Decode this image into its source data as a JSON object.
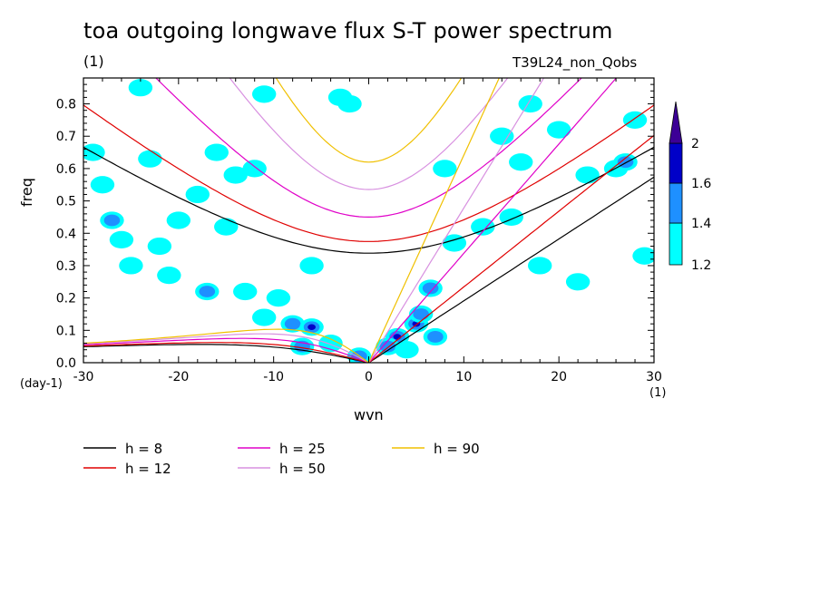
{
  "chart_data": {
    "type": "heatmap",
    "title": "toa outgoing longwave flux S-T power spectrum",
    "subtitle_left": "(1)",
    "subtitle_right": "T39L24_non_Qobs",
    "xlabel": "wvn",
    "ylabel": "freq",
    "x_unit": "(1)",
    "y_unit": "(day-1)",
    "xlim": [
      -30,
      30
    ],
    "ylim": [
      0,
      0.88
    ],
    "x_ticks": [
      -30,
      -20,
      -10,
      0,
      10,
      20,
      30
    ],
    "y_ticks": [
      0.0,
      0.1,
      0.2,
      0.3,
      0.4,
      0.5,
      0.6,
      0.7,
      0.8
    ],
    "x_tick_labels": [
      "-30",
      "-20",
      "-10",
      "0",
      "10",
      "20",
      "30"
    ],
    "y_tick_labels": [
      "0.0",
      "0.1",
      "0.2",
      "0.3",
      "0.4",
      "0.5",
      "0.6",
      "0.7",
      "0.8"
    ],
    "colorbar": {
      "levels": [
        1.2,
        1.4,
        1.6,
        2
      ],
      "labels": [
        "1.2",
        "1.4",
        "1.6",
        "2"
      ],
      "colors": [
        "#00ffff",
        "#1e90ff",
        "#0000c8",
        "#3c0096"
      ]
    },
    "series": [
      {
        "name": "h =  8",
        "h": 8,
        "color": "#000000"
      },
      {
        "name": "h = 12",
        "h": 12,
        "color": "#e00000"
      },
      {
        "name": "h = 25",
        "h": 25,
        "color": "#e000c8"
      },
      {
        "name": "h = 50",
        "h": 50,
        "color": "#d890e0"
      },
      {
        "name": "h = 90",
        "h": 90,
        "color": "#f0c000"
      }
    ],
    "contour_blobs": [
      {
        "x": 3,
        "y": 0.08,
        "level": 3
      },
      {
        "x": 5,
        "y": 0.12,
        "level": 3
      },
      {
        "x": 6.5,
        "y": 0.23,
        "level": 2
      },
      {
        "x": 5.5,
        "y": 0.15,
        "level": 2
      },
      {
        "x": 2,
        "y": 0.05,
        "level": 2
      },
      {
        "x": 7,
        "y": 0.08,
        "level": 2
      },
      {
        "x": 4,
        "y": 0.04,
        "level": 1
      },
      {
        "x": -8,
        "y": 0.12,
        "level": 2
      },
      {
        "x": -6,
        "y": 0.11,
        "level": 3
      },
      {
        "x": -9.5,
        "y": 0.2,
        "level": 1
      },
      {
        "x": -11,
        "y": 0.14,
        "level": 1
      },
      {
        "x": -4,
        "y": 0.06,
        "level": 1
      },
      {
        "x": -13,
        "y": 0.22,
        "level": 1
      },
      {
        "x": -17,
        "y": 0.22,
        "level": 2
      },
      {
        "x": -21,
        "y": 0.27,
        "level": 1
      },
      {
        "x": -25,
        "y": 0.3,
        "level": 1
      },
      {
        "x": -27,
        "y": 0.44,
        "level": 2
      },
      {
        "x": -26,
        "y": 0.38,
        "level": 1
      },
      {
        "x": -22,
        "y": 0.36,
        "level": 1
      },
      {
        "x": -20,
        "y": 0.44,
        "level": 1
      },
      {
        "x": -15,
        "y": 0.42,
        "level": 1
      },
      {
        "x": -18,
        "y": 0.52,
        "level": 1
      },
      {
        "x": -28,
        "y": 0.55,
        "level": 1
      },
      {
        "x": -29,
        "y": 0.65,
        "level": 1
      },
      {
        "x": -23,
        "y": 0.63,
        "level": 1
      },
      {
        "x": -16,
        "y": 0.65,
        "level": 1
      },
      {
        "x": -12,
        "y": 0.6,
        "level": 1
      },
      {
        "x": -11,
        "y": 0.83,
        "level": 1
      },
      {
        "x": -24,
        "y": 0.85,
        "level": 1
      },
      {
        "x": -3,
        "y": 0.82,
        "level": 1
      },
      {
        "x": 8,
        "y": 0.6,
        "level": 1
      },
      {
        "x": 14,
        "y": 0.7,
        "level": 1
      },
      {
        "x": 16,
        "y": 0.62,
        "level": 1
      },
      {
        "x": 17,
        "y": 0.8,
        "level": 1
      },
      {
        "x": 20,
        "y": 0.72,
        "level": 1
      },
      {
        "x": 15,
        "y": 0.45,
        "level": 1
      },
      {
        "x": 9,
        "y": 0.37,
        "level": 1
      },
      {
        "x": 23,
        "y": 0.58,
        "level": 1
      },
      {
        "x": 26,
        "y": 0.6,
        "level": 1
      },
      {
        "x": 27,
        "y": 0.62,
        "level": 2
      },
      {
        "x": 18,
        "y": 0.3,
        "level": 1
      },
      {
        "x": 12,
        "y": 0.42,
        "level": 1
      },
      {
        "x": 22,
        "y": 0.25,
        "level": 1
      },
      {
        "x": -6,
        "y": 0.3,
        "level": 1
      },
      {
        "x": -2,
        "y": 0.8,
        "level": 1
      },
      {
        "x": 28,
        "y": 0.75,
        "level": 1
      },
      {
        "x": 29,
        "y": 0.33,
        "level": 1
      },
      {
        "x": -14,
        "y": 0.58,
        "level": 1
      },
      {
        "x": -7,
        "y": 0.05,
        "level": 2
      },
      {
        "x": -1,
        "y": 0.02,
        "level": 2
      }
    ]
  }
}
